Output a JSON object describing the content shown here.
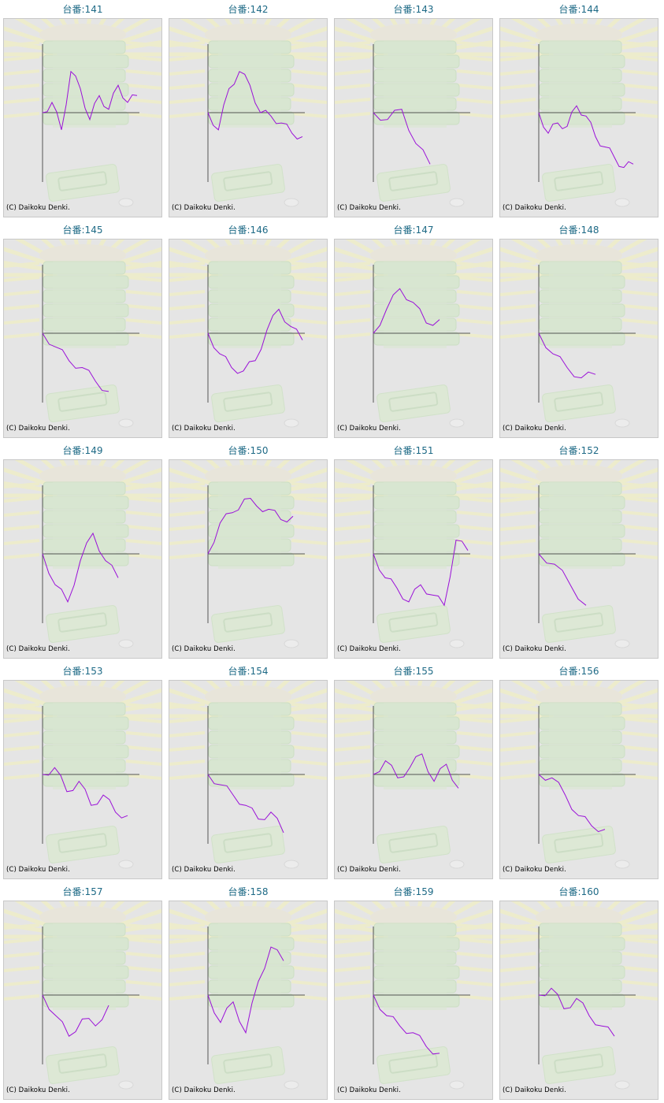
{
  "page": {
    "background": "#ffffff",
    "title_color": "#1e6a86",
    "line_color": "#9a10d8",
    "axis_color": "#555555"
  },
  "machines": [
    {
      "title": "台番:141",
      "copyright": "(C) Daikoku Denki."
    },
    {
      "title": "台番:142",
      "copyright": "(C) Daikoku Denki."
    },
    {
      "title": "台番:143",
      "copyright": "(C) Daikoku Denki."
    },
    {
      "title": "台番:144",
      "copyright": "(C) Daikoku Denki."
    },
    {
      "title": "台番:145",
      "copyright": "(C) Daikoku Denki."
    },
    {
      "title": "台番:146",
      "copyright": "(C) Daikoku Denki."
    },
    {
      "title": "台番:147",
      "copyright": "(C) Daikoku Denki."
    },
    {
      "title": "台番:148",
      "copyright": "(C) Daikoku Denki."
    },
    {
      "title": "台番:149",
      "copyright": "(C) Daikoku Denki."
    },
    {
      "title": "台番:150",
      "copyright": "(C) Daikoku Denki."
    },
    {
      "title": "台番:151",
      "copyright": "(C) Daikoku Denki."
    },
    {
      "title": "台番:152",
      "copyright": "(C) Daikoku Denki."
    },
    {
      "title": "台番:153",
      "copyright": "(C) Daikoku Denki."
    },
    {
      "title": "台番:154",
      "copyright": "(C) Daikoku Denki."
    },
    {
      "title": "台番:155",
      "copyright": "(C) Daikoku Denki."
    },
    {
      "title": "台番:156",
      "copyright": "(C) Daikoku Denki."
    },
    {
      "title": "台番:157",
      "copyright": "(C) Daikoku Denki."
    },
    {
      "title": "台番:158",
      "copyright": "(C) Daikoku Denki."
    },
    {
      "title": "台番:159",
      "copyright": "(C) Daikoku Denki."
    },
    {
      "title": "台番:160",
      "copyright": "(C) Daikoku Denki."
    }
  ],
  "chart_data": [
    {
      "type": "line",
      "x": [
        0,
        1,
        2,
        3,
        4,
        5,
        6,
        7,
        8,
        9,
        10
      ],
      "y": [
        0,
        0.15,
        -0.25,
        0.6,
        0.35,
        -0.1,
        0.25,
        0.05,
        0.4,
        0.15,
        0.25
      ]
    },
    {
      "type": "line",
      "x": [
        0,
        1,
        2,
        3,
        4,
        5,
        6,
        7,
        8,
        9
      ],
      "y": [
        0,
        -0.25,
        0.35,
        0.6,
        0.4,
        0.0,
        -0.05,
        -0.15,
        -0.3,
        -0.35
      ]
    },
    {
      "type": "line",
      "x": [
        0,
        1,
        2,
        3,
        4
      ],
      "y": [
        0,
        -0.1,
        0.05,
        -0.45,
        -0.75
      ]
    },
    {
      "type": "line",
      "x": [
        0,
        1,
        2,
        3,
        4,
        5,
        6,
        7,
        8,
        9,
        10
      ],
      "y": [
        0,
        -0.3,
        -0.15,
        -0.2,
        0.1,
        -0.05,
        -0.35,
        -0.5,
        -0.65,
        -0.8,
        -0.75
      ]
    },
    {
      "type": "line",
      "x": [
        0,
        1,
        2,
        3,
        4,
        5
      ],
      "y": [
        0,
        -0.2,
        -0.4,
        -0.5,
        -0.7,
        -0.85
      ]
    },
    {
      "type": "line",
      "x": [
        0,
        1,
        2,
        3,
        4,
        5,
        6,
        7,
        8
      ],
      "y": [
        0,
        -0.3,
        -0.5,
        -0.55,
        -0.4,
        0.05,
        0.35,
        0.1,
        -0.1
      ]
    },
    {
      "type": "line",
      "x": [
        0,
        1,
        2,
        3,
        4,
        5
      ],
      "y": [
        0,
        0.35,
        0.65,
        0.45,
        0.15,
        0.2
      ]
    },
    {
      "type": "line",
      "x": [
        0,
        1,
        2,
        3,
        4
      ],
      "y": [
        0,
        -0.3,
        -0.5,
        -0.65,
        -0.6
      ]
    },
    {
      "type": "line",
      "x": [
        0,
        1,
        2,
        3,
        4,
        5,
        6
      ],
      "y": [
        0,
        -0.45,
        -0.7,
        -0.1,
        0.3,
        -0.1,
        -0.35
      ]
    },
    {
      "type": "line",
      "x": [
        0,
        1,
        2,
        3,
        4,
        5,
        6,
        7
      ],
      "y": [
        0,
        0.45,
        0.6,
        0.8,
        0.7,
        0.65,
        0.5,
        0.55
      ]
    },
    {
      "type": "line",
      "x": [
        0,
        1,
        2,
        3,
        4,
        5,
        6,
        7,
        8
      ],
      "y": [
        0,
        -0.35,
        -0.5,
        -0.7,
        -0.45,
        -0.6,
        -0.75,
        0.2,
        0.05
      ]
    },
    {
      "type": "line",
      "x": [
        0,
        1,
        2,
        3
      ],
      "y": [
        0,
        -0.15,
        -0.45,
        -0.75
      ]
    },
    {
      "type": "line",
      "x": [
        0,
        1,
        2,
        3,
        4,
        5,
        6,
        7
      ],
      "y": [
        0,
        0.1,
        -0.25,
        -0.1,
        -0.45,
        -0.3,
        -0.55,
        -0.6
      ]
    },
    {
      "type": "line",
      "x": [
        0,
        1,
        2,
        3,
        4,
        5,
        6
      ],
      "y": [
        0,
        -0.15,
        -0.3,
        -0.45,
        -0.65,
        -0.55,
        -0.85
      ]
    },
    {
      "type": "line",
      "x": [
        0,
        1,
        2,
        3,
        4,
        5,
        6,
        7
      ],
      "y": [
        0,
        0.2,
        -0.05,
        0.1,
        0.3,
        -0.1,
        0.15,
        -0.2
      ]
    },
    {
      "type": "line",
      "x": [
        0,
        1,
        2,
        3,
        4,
        5
      ],
      "y": [
        0,
        -0.05,
        -0.3,
        -0.6,
        -0.75,
        -0.8
      ]
    },
    {
      "type": "line",
      "x": [
        0,
        1,
        2,
        3,
        4,
        5
      ],
      "y": [
        0,
        -0.3,
        -0.6,
        -0.35,
        -0.45,
        -0.15
      ]
    },
    {
      "type": "line",
      "x": [
        0,
        1,
        2,
        3,
        4,
        5,
        6
      ],
      "y": [
        0,
        -0.4,
        -0.1,
        -0.55,
        0.2,
        0.7,
        0.5
      ]
    },
    {
      "type": "line",
      "x": [
        0,
        1,
        2,
        3,
        4,
        5
      ],
      "y": [
        0,
        -0.3,
        -0.45,
        -0.55,
        -0.75,
        -0.85
      ]
    },
    {
      "type": "line",
      "x": [
        0,
        1,
        2,
        3,
        4,
        5,
        6
      ],
      "y": [
        0,
        0.1,
        -0.2,
        -0.05,
        -0.3,
        -0.45,
        -0.6
      ]
    }
  ]
}
